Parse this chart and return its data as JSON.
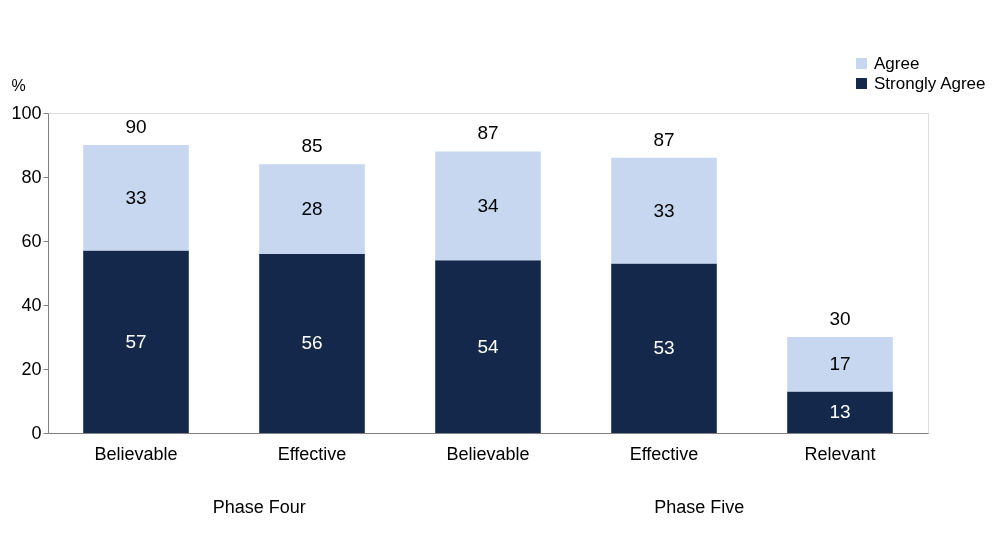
{
  "chart_data": {
    "type": "bar",
    "stacked": true,
    "ylabel": "%",
    "categories": [
      "Believable",
      "Effective",
      "Believable",
      "Effective",
      "Relevant"
    ],
    "series": [
      {
        "name": "Strongly Agree",
        "color": "#14284b",
        "values": [
          57,
          56,
          54,
          53,
          13
        ]
      },
      {
        "name": "Agree",
        "color": "#c6d7ef",
        "values": [
          33,
          28,
          34,
          33,
          17
        ]
      }
    ],
    "totals": [
      "90",
      "85",
      "87",
      "87",
      "30"
    ],
    "data_labels": true,
    "ylim": [
      0,
      100
    ],
    "yticks": [
      0,
      20,
      40,
      60,
      80,
      100
    ],
    "grid": false,
    "legend": "top right",
    "annotations": [
      "Phase Four",
      "Phase Five"
    ]
  }
}
